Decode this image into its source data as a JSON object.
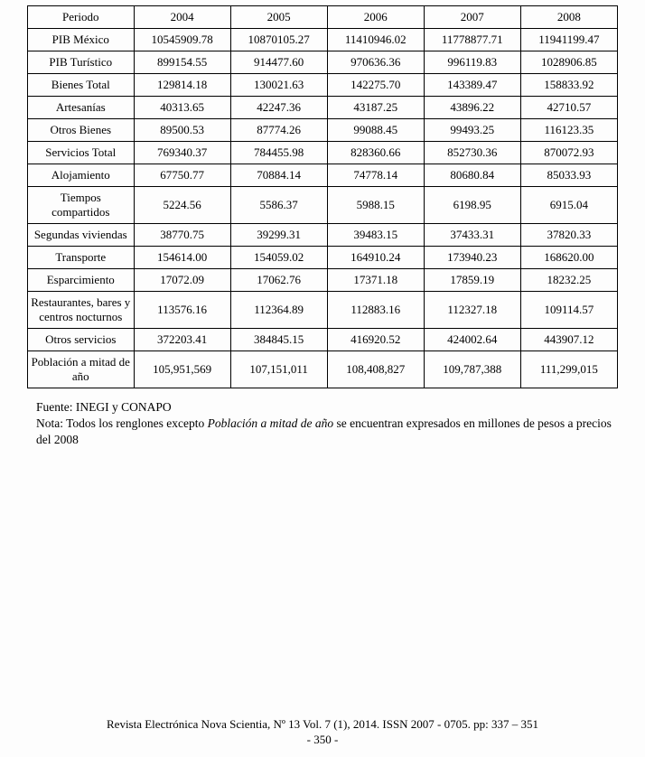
{
  "table": {
    "columns": [
      "Periodo",
      "2004",
      "2005",
      "2006",
      "2007",
      "2008"
    ],
    "col_widths": [
      "18%",
      "16.4%",
      "16.4%",
      "16.4%",
      "16.4%",
      "16.4%"
    ],
    "border_color": "#000000",
    "font_size": 13,
    "rows": [
      {
        "label": "PIB México",
        "v": [
          "10545909.78",
          "10870105.27",
          "11410946.02",
          "11778877.71",
          "11941199.47"
        ]
      },
      {
        "label": "PIB Turístico",
        "v": [
          "899154.55",
          "914477.60",
          "970636.36",
          "996119.83",
          "1028906.85"
        ]
      },
      {
        "label": "Bienes Total",
        "v": [
          "129814.18",
          "130021.63",
          "142275.70",
          "143389.47",
          "158833.92"
        ]
      },
      {
        "label": "Artesanías",
        "v": [
          "40313.65",
          "42247.36",
          "43187.25",
          "43896.22",
          "42710.57"
        ]
      },
      {
        "label": "Otros Bienes",
        "v": [
          "89500.53",
          "87774.26",
          "99088.45",
          "99493.25",
          "116123.35"
        ]
      },
      {
        "label": "Servicios Total",
        "v": [
          "769340.37",
          "784455.98",
          "828360.66",
          "852730.36",
          "870072.93"
        ]
      },
      {
        "label": "Alojamiento",
        "v": [
          "67750.77",
          "70884.14",
          "74778.14",
          "80680.84",
          "85033.93"
        ]
      },
      {
        "label": "Tiempos compartidos",
        "v": [
          "5224.56",
          "5586.37",
          "5988.15",
          "6198.95",
          "6915.04"
        ]
      },
      {
        "label": "Segundas viviendas",
        "v": [
          "38770.75",
          "39299.31",
          "39483.15",
          "37433.31",
          "37820.33"
        ]
      },
      {
        "label": "Transporte",
        "v": [
          "154614.00",
          "154059.02",
          "164910.24",
          "173940.23",
          "168620.00"
        ]
      },
      {
        "label": "Esparcimiento",
        "v": [
          "17072.09",
          "17062.76",
          "17371.18",
          "17859.19",
          "18232.25"
        ]
      },
      {
        "label": "Restaurantes, bares y centros nocturnos",
        "v": [
          "113576.16",
          "112364.89",
          "112883.16",
          "112327.18",
          "109114.57"
        ]
      },
      {
        "label": "Otros servicios",
        "v": [
          "372203.41",
          "384845.15",
          "416920.52",
          "424002.64",
          "443907.12"
        ]
      },
      {
        "label": "Población a mitad de año",
        "v": [
          "105,951,569",
          "107,151,011",
          "108,408,827",
          "109,787,388",
          "111,299,015"
        ]
      }
    ]
  },
  "notes": {
    "source": "Fuente: INEGI y CONAPO",
    "note_prefix": "Nota: Todos los renglones excepto ",
    "note_italic": "Población a mitad de año",
    "note_suffix": " se encuentran expresados en millones de pesos a precios del 2008"
  },
  "footer": {
    "line1": "Revista Electrónica Nova Scientia, Nº 13 Vol. 7 (1), 2014. ISSN 2007 - 0705. pp: 337 – 351",
    "line2": "- 350 -"
  }
}
